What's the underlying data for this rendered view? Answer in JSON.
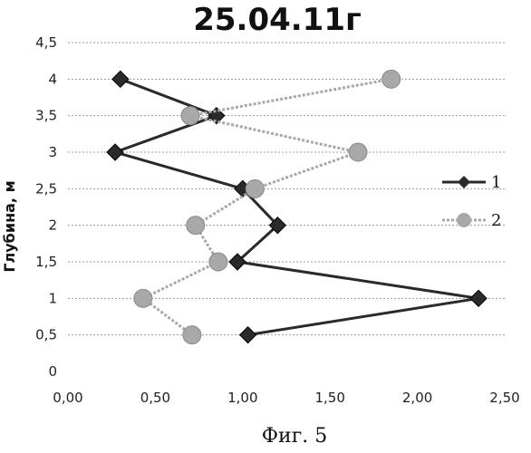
{
  "caption": "Фиг. 5",
  "chart_data": {
    "type": "line",
    "title": "25.04.11г",
    "xlabel": "",
    "ylabel": "Глубина, м",
    "xlim": [
      0,
      2.5
    ],
    "ylim": [
      0,
      4.5
    ],
    "x_ticks": [
      "0,00",
      "0,50",
      "1,00",
      "1,50",
      "2,00",
      "2,50"
    ],
    "y_ticks": [
      "0",
      "0,5",
      "1",
      "1,5",
      "2",
      "2,5",
      "3",
      "3,5",
      "4",
      "4,5"
    ],
    "grid": "horizontal",
    "legend_position": "right",
    "series": [
      {
        "name": "1",
        "color": "#2a2a2a",
        "points": [
          {
            "x": 1.03,
            "y": 0.5
          },
          {
            "x": 2.35,
            "y": 1.0
          },
          {
            "x": 0.97,
            "y": 1.5
          },
          {
            "x": 1.2,
            "y": 2.0
          },
          {
            "x": 1.0,
            "y": 2.5
          },
          {
            "x": 0.27,
            "y": 3.0
          },
          {
            "x": 0.85,
            "y": 3.5
          },
          {
            "x": 0.3,
            "y": 4.0
          }
        ]
      },
      {
        "name": "2",
        "color": "#a8a8a8",
        "points": [
          {
            "x": 0.71,
            "y": 0.5
          },
          {
            "x": 0.43,
            "y": 1.0
          },
          {
            "x": 0.86,
            "y": 1.5
          },
          {
            "x": 0.73,
            "y": 2.0
          },
          {
            "x": 1.07,
            "y": 2.5
          },
          {
            "x": 1.66,
            "y": 3.0
          },
          {
            "x": 0.7,
            "y": 3.5
          },
          {
            "x": 1.85,
            "y": 4.0
          }
        ]
      }
    ]
  }
}
